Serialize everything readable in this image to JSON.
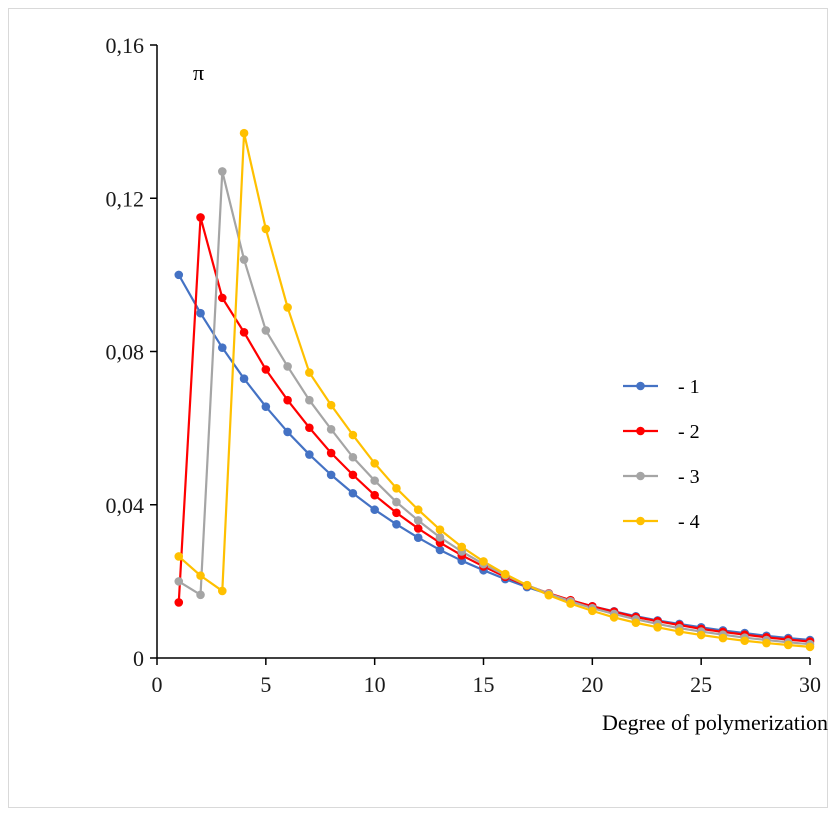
{
  "chart_data": {
    "type": "line",
    "title": "",
    "xlabel": "Degree of polymerization",
    "ylabel": "π",
    "xlim": [
      0,
      30
    ],
    "ylim": [
      0,
      0.16
    ],
    "x_ticks": [
      0,
      5,
      10,
      15,
      20,
      25,
      30
    ],
    "x_tick_labels": [
      "0",
      "5",
      "10",
      "15",
      "20",
      "25",
      "30"
    ],
    "y_ticks": [
      0,
      0.04,
      0.08,
      0.12,
      0.16
    ],
    "y_tick_labels": [
      "0",
      "0,04",
      "0,08",
      "0,12",
      "0,16"
    ],
    "grid": false,
    "legend_position": "right",
    "series": [
      {
        "name": "- 1",
        "color": "#4472c4",
        "x": [
          1,
          2,
          3,
          4,
          5,
          6,
          7,
          8,
          9,
          10,
          11,
          12,
          13,
          14,
          15,
          16,
          17,
          18,
          19,
          20,
          21,
          22,
          23,
          24,
          25,
          26,
          27,
          28,
          29,
          30
        ],
        "values": [
          0.1,
          0.09,
          0.081,
          0.0729,
          0.0656,
          0.059,
          0.0531,
          0.0478,
          0.043,
          0.0387,
          0.0349,
          0.0314,
          0.0282,
          0.0254,
          0.0229,
          0.0206,
          0.0185,
          0.0167,
          0.015,
          0.0135,
          0.0122,
          0.0109,
          0.0098,
          0.0089,
          0.008,
          0.0072,
          0.0065,
          0.0058,
          0.0052,
          0.0047
        ]
      },
      {
        "name": "- 2",
        "color": "#ff0000",
        "x": [
          1,
          2,
          3,
          4,
          5,
          6,
          7,
          8,
          9,
          10,
          11,
          12,
          13,
          14,
          15,
          16,
          17,
          18,
          19,
          20,
          21,
          22,
          23,
          24,
          25,
          26,
          27,
          28,
          29,
          30
        ],
        "values": [
          0.0145,
          0.115,
          0.094,
          0.085,
          0.0753,
          0.0673,
          0.0601,
          0.0535,
          0.0478,
          0.0425,
          0.0379,
          0.0338,
          0.0301,
          0.0268,
          0.0239,
          0.0212,
          0.0189,
          0.0169,
          0.0151,
          0.0135,
          0.0121,
          0.0107,
          0.0096,
          0.0086,
          0.0076,
          0.0068,
          0.0061,
          0.0054,
          0.0048,
          0.0043
        ]
      },
      {
        "name": "- 3",
        "color": "#a5a5a5",
        "x": [
          1,
          2,
          3,
          4,
          5,
          6,
          7,
          8,
          9,
          10,
          11,
          12,
          13,
          14,
          15,
          16,
          17,
          18,
          19,
          20,
          21,
          22,
          23,
          24,
          25,
          26,
          27,
          28,
          29,
          30
        ],
        "values": [
          0.02,
          0.0165,
          0.127,
          0.104,
          0.0855,
          0.0761,
          0.0673,
          0.0597,
          0.0524,
          0.0463,
          0.0407,
          0.0359,
          0.0315,
          0.0278,
          0.0245,
          0.0216,
          0.019,
          0.0168,
          0.0148,
          0.013,
          0.0115,
          0.0101,
          0.0089,
          0.0078,
          0.0069,
          0.0061,
          0.0053,
          0.0047,
          0.0041,
          0.0036
        ]
      },
      {
        "name": "- 4",
        "color": "#ffc000",
        "x": [
          1,
          2,
          3,
          4,
          5,
          6,
          7,
          8,
          9,
          10,
          11,
          12,
          13,
          14,
          15,
          16,
          17,
          18,
          19,
          20,
          21,
          22,
          23,
          24,
          25,
          26,
          27,
          28,
          29,
          30
        ],
        "values": [
          0.0265,
          0.0215,
          0.0175,
          0.137,
          0.112,
          0.0915,
          0.0745,
          0.066,
          0.0582,
          0.0508,
          0.0443,
          0.0387,
          0.0335,
          0.029,
          0.0252,
          0.0219,
          0.019,
          0.0164,
          0.0142,
          0.0123,
          0.0106,
          0.0092,
          0.008,
          0.0069,
          0.006,
          0.0052,
          0.0045,
          0.0039,
          0.0034,
          0.0029
        ]
      }
    ]
  }
}
